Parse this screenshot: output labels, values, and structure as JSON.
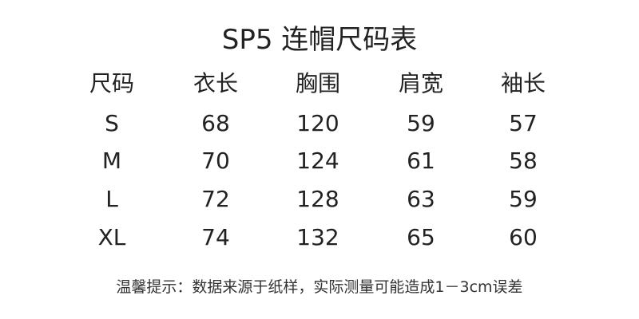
{
  "title": "SP5 连帽尺码表",
  "headers": [
    "尺码",
    "衣长",
    "胸围",
    "肩宽",
    "袖长"
  ],
  "rows": [
    [
      "S",
      "68",
      "120",
      "59",
      "57"
    ],
    [
      "M",
      "70",
      "124",
      "61",
      "58"
    ],
    [
      "L",
      "72",
      "128",
      "63",
      "59"
    ],
    [
      "XL",
      "74",
      "132",
      "65",
      "60"
    ]
  ],
  "note": "温馨提示：数据来源于纸样，实际测量可能造成1－3cm误差"
}
